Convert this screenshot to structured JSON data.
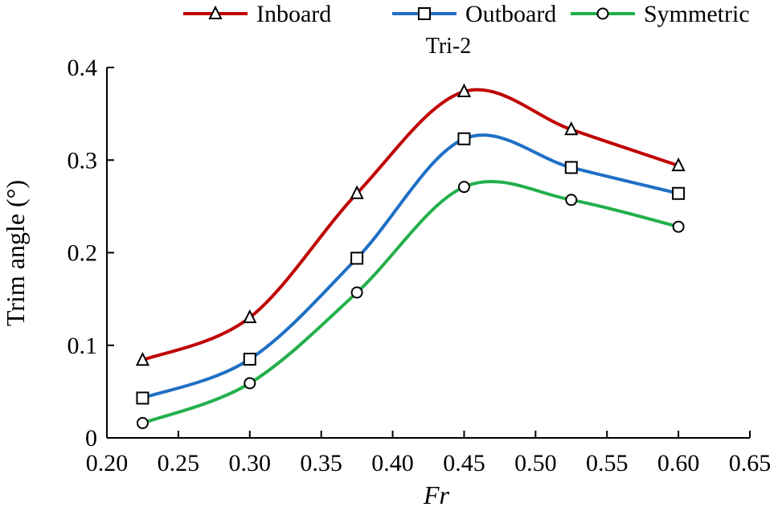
{
  "chart_data": {
    "type": "line",
    "title": "Tri-2",
    "xlabel": "Fr",
    "ylabel": "Trim angle (°)",
    "xlim": [
      0.2,
      0.65
    ],
    "ylim": [
      0,
      0.4
    ],
    "x_ticks": [
      "0.20",
      "0.25",
      "0.30",
      "0.35",
      "0.40",
      "0.45",
      "0.50",
      "0.55",
      "0.60",
      "0.65"
    ],
    "y_ticks": [
      "0",
      "0.1",
      "0.2",
      "0.3",
      "0.4"
    ],
    "x": [
      0.225,
      0.3,
      0.375,
      0.45,
      0.525,
      0.6
    ],
    "grid": false,
    "legend_position": "top",
    "series": [
      {
        "name": "Inboard",
        "marker": "triangle",
        "color": "#c00000",
        "values": [
          0.084,
          0.13,
          0.264,
          0.374,
          0.333,
          0.294
        ]
      },
      {
        "name": "Outboard",
        "marker": "square",
        "color": "#1f6fc5",
        "values": [
          0.043,
          0.085,
          0.194,
          0.323,
          0.292,
          0.264
        ]
      },
      {
        "name": "Symmetric",
        "marker": "circle",
        "color": "#22b04b",
        "values": [
          0.016,
          0.059,
          0.157,
          0.271,
          0.257,
          0.228
        ]
      }
    ]
  }
}
